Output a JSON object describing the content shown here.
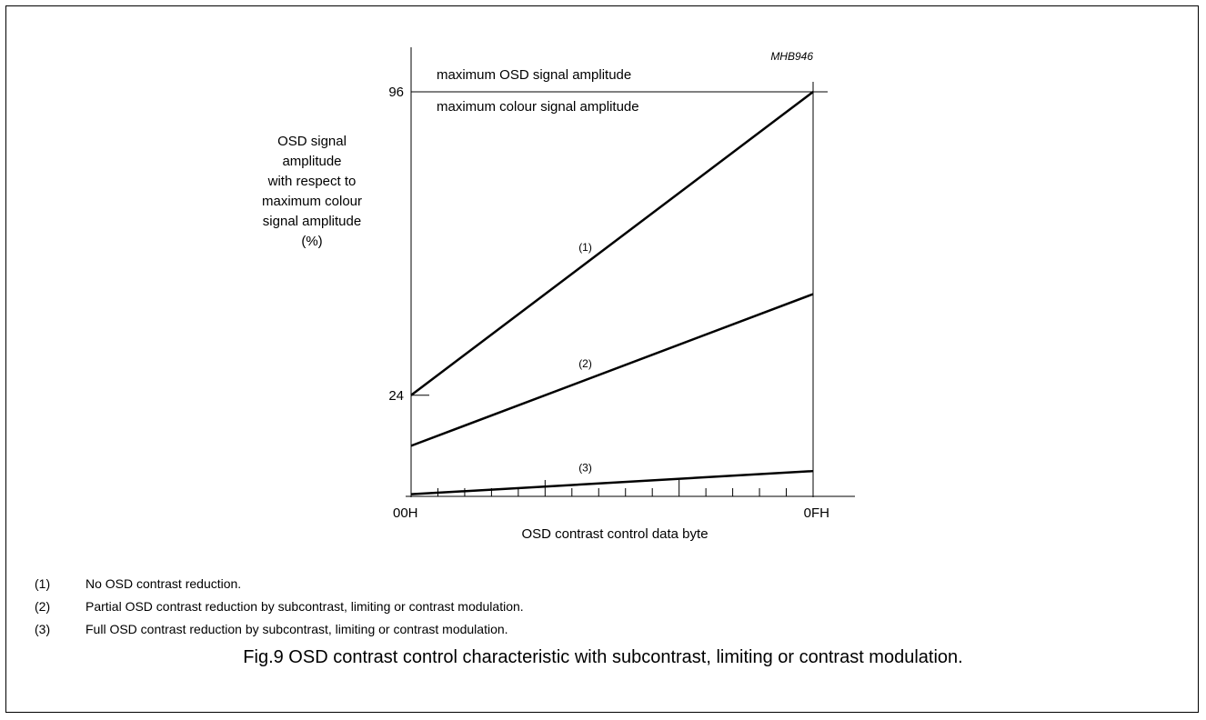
{
  "chart_data": {
    "type": "line",
    "code": "MHB946",
    "x_ticks": [
      "00H",
      "0FH"
    ],
    "xlabel": "OSD contrast control data byte",
    "ylabel_lines": [
      "OSD signal",
      "amplitude",
      "with respect to",
      "maximum colour",
      "signal amplitude",
      "(%)"
    ],
    "y_ticks": [
      24,
      96
    ],
    "ylim": [
      0,
      100
    ],
    "xlim": [
      0,
      15
    ],
    "ref_line": {
      "y": 96,
      "label_above": "maximum OSD signal amplitude",
      "label_below": "maximum colour signal amplitude"
    },
    "series": [
      {
        "name": "(1)",
        "x": [
          0,
          15
        ],
        "y": [
          24,
          96
        ],
        "label_at_x": 6.5
      },
      {
        "name": "(2)",
        "x": [
          0,
          15
        ],
        "y": [
          12,
          48
        ],
        "label_at_x": 6.5
      },
      {
        "name": "(3)",
        "x": [
          0,
          15
        ],
        "y": [
          0.5,
          6
        ],
        "label_at_x": 6.5
      }
    ]
  },
  "notes": [
    {
      "num": "(1)",
      "text": "No OSD contrast reduction."
    },
    {
      "num": "(2)",
      "text": "Partial OSD contrast reduction by subcontrast, limiting or contrast modulation."
    },
    {
      "num": "(3)",
      "text": "Full OSD contrast reduction by subcontrast, limiting or contrast modulation."
    }
  ],
  "caption": "Fig.9  OSD contrast control characteristic with subcontrast, limiting or contrast modulation."
}
